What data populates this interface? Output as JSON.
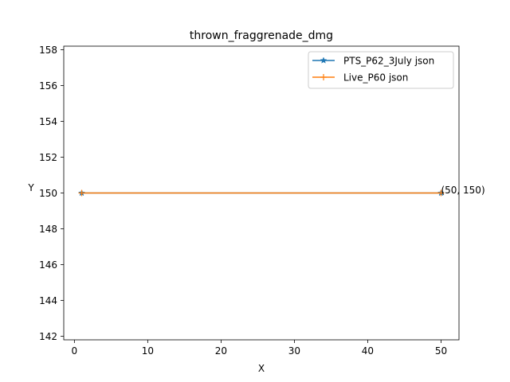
{
  "chart_data": {
    "type": "line",
    "title": "thrown_fraggrenade_dmg",
    "xlabel": "X",
    "ylabel": "Y",
    "xlim": [
      -1.45,
      52.45
    ],
    "ylim": [
      141.8,
      158.2
    ],
    "xticks": [
      0,
      10,
      20,
      30,
      40,
      50
    ],
    "yticks": [
      142,
      144,
      146,
      148,
      150,
      152,
      154,
      156,
      158
    ],
    "grid": false,
    "legend_position": "top-right",
    "series": [
      {
        "name": "PTS_P62_3July json",
        "color": "#1f77b4",
        "marker": "star",
        "x": [
          1,
          50
        ],
        "y": [
          150,
          150
        ]
      },
      {
        "name": "Live_P60 json",
        "color": "#ff7f0e",
        "marker": "plus",
        "x": [
          1,
          50
        ],
        "y": [
          150,
          150
        ]
      }
    ],
    "annotations": [
      {
        "text": "(50, 150)",
        "x": 50,
        "y": 150
      }
    ]
  }
}
